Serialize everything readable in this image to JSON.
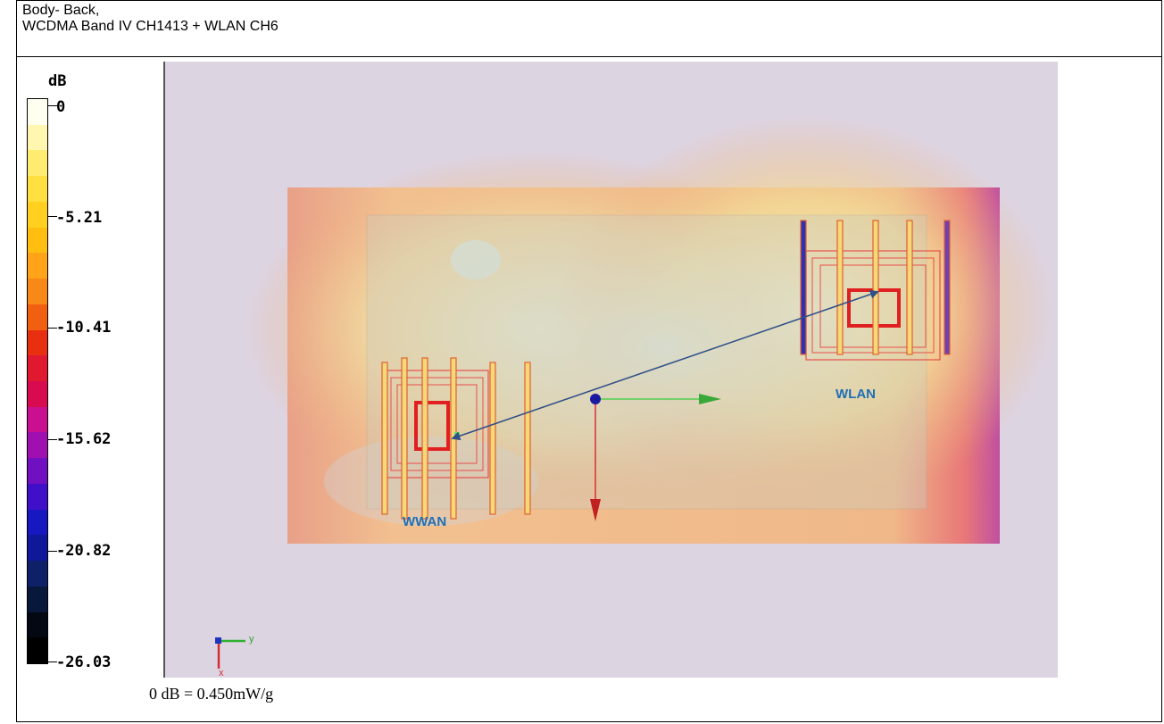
{
  "header": {
    "line1": "Body- Back,",
    "line2": "WCDMA Band IV CH1413 + WLAN CH6"
  },
  "scale": {
    "unit": "dB",
    "labels": [
      "0",
      "-5.21",
      "-10.41",
      "-15.62",
      "-20.82",
      "-26.03"
    ],
    "colors": [
      "#fffff0",
      "#fff6b0",
      "#ffec70",
      "#ffe040",
      "#ffd020",
      "#ffbe10",
      "#ffa418",
      "#f88818",
      "#f06010",
      "#e83010",
      "#e01830",
      "#d80a50",
      "#c81090",
      "#a010b0",
      "#7010c0",
      "#4010c8",
      "#1818c0",
      "#10189a",
      "#0e2068",
      "#08183a",
      "#040812",
      "#000000"
    ]
  },
  "antennas": {
    "wwan": "WWAN",
    "wlan": "WLAN"
  },
  "axis_glyph": {
    "y": "y",
    "x": "x"
  },
  "footer": {
    "reference": "0 dB = 0.450mW/g"
  },
  "colors": {
    "background": "#ddd4e2",
    "label_blue": "#1f6fb7",
    "arrow": "#2f4f88"
  }
}
